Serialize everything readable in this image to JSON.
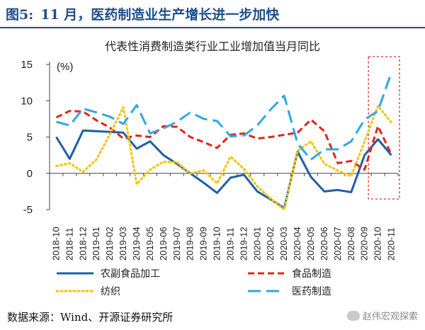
{
  "header": {
    "fig_num": "图5:",
    "title": "11 月，医药制造业生产增长进一步加快"
  },
  "chart_data": {
    "type": "line",
    "title": "代表性消费制造类行业工业增加值当月同比",
    "ylabel": "(%)",
    "ylim": [
      -5,
      15
    ],
    "yticks": [
      15,
      10,
      5,
      0,
      -5
    ],
    "categories": [
      "2018-10",
      "2018-11",
      "2018-12",
      "2019-01",
      "2019-02",
      "2019-03",
      "2019-04",
      "2019-05",
      "2019-06",
      "2019-07",
      "2019-08",
      "2019-09",
      "2019-10",
      "2019-11",
      "2019-12",
      "2020-01",
      "2020-02",
      "2020-03",
      "2020-04",
      "2020-05",
      "2020-06",
      "2020-07",
      "2020-08",
      "2020-09",
      "2020-10",
      "2020-11"
    ],
    "series": [
      {
        "name": "农副食品加工",
        "color": "#1f5fa8",
        "style": "solid",
        "values": [
          5.0,
          2.0,
          5.9,
          5.8,
          5.7,
          5.6,
          3.4,
          4.4,
          2.5,
          1.3,
          0.0,
          -1.3,
          -2.7,
          -0.6,
          -0.2,
          -2.5,
          -3.6,
          -4.8,
          3.0,
          -0.5,
          -2.5,
          -2.3,
          -2.6,
          2.5,
          4.7,
          2.5
        ]
      },
      {
        "name": "食品制造",
        "color": "#e1251b",
        "style": "dashed",
        "values": [
          7.7,
          8.6,
          8.5,
          7.3,
          6.3,
          4.8,
          5.2,
          5.0,
          6.5,
          6.4,
          5.0,
          4.3,
          3.5,
          5.3,
          5.5,
          4.8,
          5.0,
          5.3,
          5.6,
          7.4,
          5.8,
          1.4,
          1.7,
          0.5,
          6.5,
          2.6
        ]
      },
      {
        "name": "纺织",
        "color": "#f5c400",
        "style": "dotted",
        "values": [
          1.0,
          1.4,
          0.2,
          1.9,
          5.4,
          9.1,
          -1.5,
          0.5,
          1.6,
          1.5,
          0.0,
          0.4,
          -1.4,
          2.3,
          0.6,
          -1.8,
          -3.5,
          -5.0,
          3.1,
          4.4,
          1.3,
          0.4,
          -0.4,
          4.4,
          9.3,
          7.0
        ]
      },
      {
        "name": "医药制造",
        "color": "#2fa8e1",
        "style": "longdash",
        "values": [
          7.1,
          6.6,
          8.9,
          8.4,
          7.8,
          6.8,
          9.4,
          5.5,
          6.2,
          7.1,
          8.4,
          7.5,
          7.2,
          5.1,
          5.2,
          6.6,
          8.8,
          10.7,
          4.1,
          1.9,
          3.3,
          3.3,
          4.4,
          7.4,
          8.6,
          13.9
        ]
      }
    ],
    "highlight_box": {
      "from": "2020-10",
      "to": "2020-11",
      "color": "#e1251b"
    },
    "legend_position": "bottom"
  },
  "source": {
    "text": "数据来源：Wind、开源证券研究所"
  },
  "watermark": {
    "text": "赵伟宏观探索"
  }
}
